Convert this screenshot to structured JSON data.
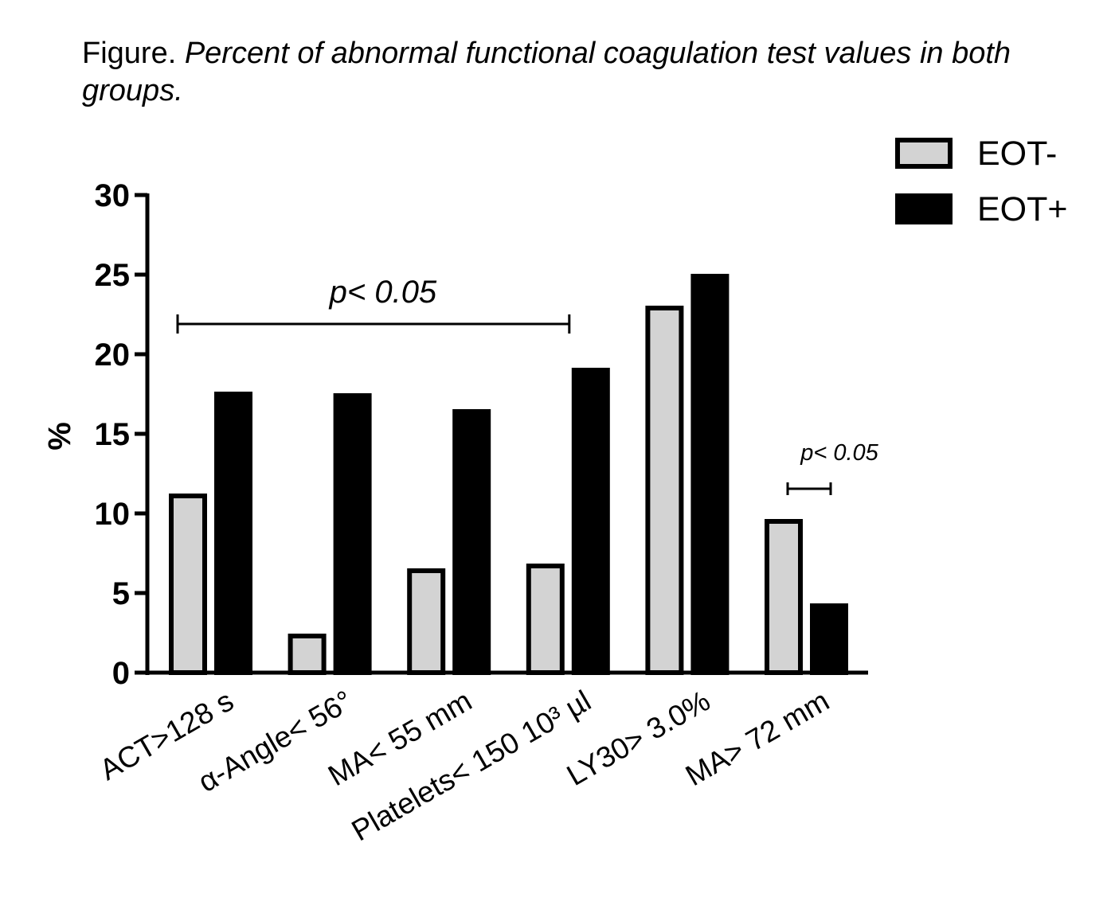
{
  "caption": {
    "prefix": "Figure. ",
    "text": "Percent of abnormal functional coagulation test values in both groups."
  },
  "chart_data": {
    "type": "bar",
    "title": "",
    "xlabel": "",
    "ylabel": "%",
    "ylim": [
      0,
      30
    ],
    "yticks": [
      "0",
      "5",
      "10",
      "15",
      "20",
      "25",
      "30"
    ],
    "categories": [
      "ACT>128 s",
      "α-Angle< 56°",
      "MA< 55 mm",
      "Platelets< 150 10³ µl",
      "LY30> 3.0%",
      "MA> 72 mm"
    ],
    "series": [
      {
        "name": "EOT-",
        "color": "#d3d3d3",
        "values": [
          11.1,
          2.3,
          6.4,
          6.7,
          22.9,
          9.5
        ]
      },
      {
        "name": "EOT+",
        "color": "#000000",
        "values": [
          17.5,
          17.4,
          16.4,
          19.0,
          24.9,
          4.2
        ]
      }
    ],
    "legend_position": "top-right",
    "grid": false,
    "annotations": [
      {
        "text": "p< 0.05",
        "from_category": 0,
        "to_category": 3
      },
      {
        "text": "p< 0.05",
        "from_category": 5,
        "to_category": 5
      }
    ]
  }
}
